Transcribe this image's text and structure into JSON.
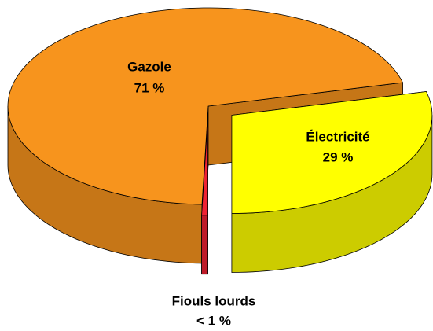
{
  "chart_data": {
    "type": "pie",
    "categories": [
      "Gazole",
      "Électricité",
      "Fiouls lourds"
    ],
    "values": [
      71,
      29,
      0.5
    ],
    "value_labels": [
      "71 %",
      "29 %",
      "< 1 %"
    ],
    "colors": [
      "#f7941d",
      "#ffff00",
      "#ee2233"
    ]
  }
}
